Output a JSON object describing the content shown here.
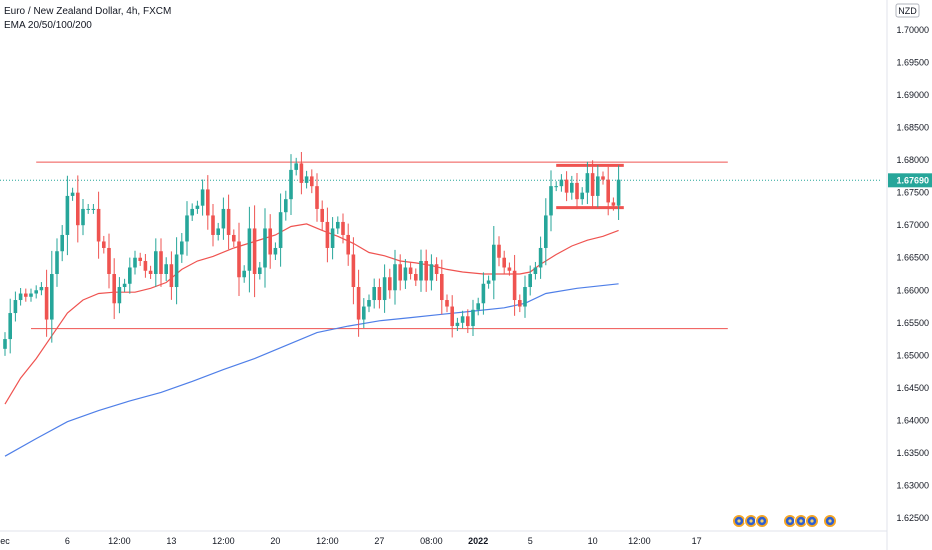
{
  "legend": {
    "title": "Euro / New Zealand Dollar, 4h, FXCM",
    "indicator": "EMA 20/50/100/200"
  },
  "currency_badge": "NZD",
  "last_price_label": "1.67690",
  "colors": {
    "up": "#26a69a",
    "down": "#ef5350",
    "ema50": "#ef5350",
    "ema200": "#4f7fe8",
    "level_line": "#ef5350",
    "last_price": "#26a69a"
  },
  "chart_data": {
    "type": "candlestick",
    "title": "Euro / New Zealand Dollar, 4h, FXCM",
    "ylim": [
      1.6225,
      1.7075
    ],
    "y_ticks": [
      "1.70000",
      "1.69500",
      "1.69000",
      "1.68500",
      "1.68000",
      "1.67500",
      "1.67000",
      "1.66500",
      "1.66000",
      "1.65500",
      "1.65000",
      "1.64500",
      "1.64000",
      "1.63500",
      "1.63000",
      "1.62500"
    ],
    "x_ticks": [
      {
        "i": 0,
        "label": "ec",
        "bold": false
      },
      {
        "i": 12,
        "label": "6",
        "bold": false
      },
      {
        "i": 22,
        "label": "12:00",
        "bold": false
      },
      {
        "i": 32,
        "label": "13",
        "bold": false
      },
      {
        "i": 42,
        "label": "12:00",
        "bold": false
      },
      {
        "i": 52,
        "label": "20",
        "bold": false
      },
      {
        "i": 62,
        "label": "12:00",
        "bold": false
      },
      {
        "i": 72,
        "label": "27",
        "bold": false
      },
      {
        "i": 82,
        "label": "08:00",
        "bold": false
      },
      {
        "i": 91,
        "label": "2022",
        "bold": true
      },
      {
        "i": 101,
        "label": "5",
        "bold": false
      },
      {
        "i": 113,
        "label": "10",
        "bold": false
      },
      {
        "i": 122,
        "label": "12:00",
        "bold": false
      },
      {
        "i": 133,
        "label": "17",
        "bold": false
      }
    ],
    "n_bars": 140,
    "closes": [
      1.6525,
      1.6565,
      1.6585,
      1.6595,
      1.659,
      1.6595,
      1.66,
      1.6605,
      1.6555,
      1.6625,
      1.666,
      1.6685,
      1.6745,
      1.675,
      1.67,
      1.6725,
      1.6725,
      1.6725,
      1.6675,
      1.6665,
      1.6625,
      1.658,
      1.6605,
      1.661,
      1.6635,
      1.665,
      1.6645,
      1.663,
      1.6625,
      1.666,
      1.6625,
      1.664,
      1.6605,
      1.6655,
      1.6675,
      1.6715,
      1.6725,
      1.673,
      1.6755,
      1.6715,
      1.6685,
      1.6695,
      1.6725,
      1.6685,
      1.6675,
      1.662,
      1.663,
      1.6695,
      1.6625,
      1.6635,
      1.6695,
      1.6655,
      1.6665,
      1.672,
      1.674,
      1.6785,
      1.6795,
      1.6765,
      1.6775,
      1.676,
      1.6725,
      1.6705,
      1.6665,
      1.6695,
      1.6705,
      1.6685,
      1.6655,
      1.6605,
      1.6555,
      1.6575,
      1.6585,
      1.6605,
      1.6585,
      1.662,
      1.66,
      1.664,
      1.6615,
      1.6635,
      1.6625,
      1.6615,
      1.6645,
      1.6615,
      1.664,
      1.6625,
      1.6585,
      1.6575,
      1.6545,
      1.655,
      1.656,
      1.6545,
      1.657,
      1.658,
      1.661,
      1.6615,
      1.667,
      1.665,
      1.6635,
      1.663,
      1.6585,
      1.6575,
      1.6605,
      1.6625,
      1.6635,
      1.6665,
      1.6715,
      1.676,
      1.676,
      1.677,
      1.675,
      1.6765,
      1.674,
      1.675,
      1.678,
      1.6745,
      1.6775,
      1.677,
      1.6735,
      1.673,
      1.677
    ],
    "emas": [
      {
        "name": "EMA 50",
        "color": "#ef5350",
        "points": [
          [
            0,
            1.6425
          ],
          [
            3,
            1.6465
          ],
          [
            6,
            1.6495
          ],
          [
            9,
            1.653
          ],
          [
            12,
            1.6565
          ],
          [
            15,
            1.6585
          ],
          [
            18,
            1.6595
          ],
          [
            21,
            1.6597
          ],
          [
            25,
            1.6597
          ],
          [
            28,
            1.6603
          ],
          [
            31,
            1.6612
          ],
          [
            34,
            1.6632
          ],
          [
            37,
            1.6645
          ],
          [
            40,
            1.6652
          ],
          [
            44,
            1.6665
          ],
          [
            48,
            1.6675
          ],
          [
            52,
            1.6685
          ],
          [
            55,
            1.6698
          ],
          [
            58,
            1.6702
          ],
          [
            61,
            1.6692
          ],
          [
            64,
            1.6683
          ],
          [
            67,
            1.6672
          ],
          [
            70,
            1.6658
          ],
          [
            73,
            1.6653
          ],
          [
            76,
            1.6645
          ],
          [
            79,
            1.6642
          ],
          [
            82,
            1.6638
          ],
          [
            85,
            1.6632
          ],
          [
            88,
            1.6628
          ],
          [
            92,
            1.6625
          ],
          [
            96,
            1.6625
          ],
          [
            99,
            1.6625
          ],
          [
            101,
            1.6628
          ],
          [
            103,
            1.664
          ],
          [
            106,
            1.6655
          ],
          [
            109,
            1.6668
          ],
          [
            112,
            1.6677
          ],
          [
            115,
            1.6683
          ],
          [
            118,
            1.6692
          ]
        ]
      },
      {
        "name": "EMA 200",
        "color": "#4f7fe8",
        "points": [
          [
            0,
            1.6345
          ],
          [
            6,
            1.6372
          ],
          [
            12,
            1.6398
          ],
          [
            18,
            1.6415
          ],
          [
            24,
            1.643
          ],
          [
            30,
            1.6443
          ],
          [
            36,
            1.646
          ],
          [
            42,
            1.6478
          ],
          [
            48,
            1.6495
          ],
          [
            54,
            1.6515
          ],
          [
            60,
            1.6535
          ],
          [
            66,
            1.6545
          ],
          [
            72,
            1.6553
          ],
          [
            78,
            1.6558
          ],
          [
            84,
            1.6563
          ],
          [
            90,
            1.6568
          ],
          [
            96,
            1.6573
          ],
          [
            100,
            1.658
          ],
          [
            104,
            1.6595
          ],
          [
            110,
            1.6603
          ],
          [
            118,
            1.661
          ]
        ]
      }
    ],
    "levels": [
      {
        "name": "upper-level-line",
        "y": 1.6797,
        "x_start": 6,
        "x_end": 139,
        "width": 1
      },
      {
        "name": "lower-level-line",
        "y": 1.6541,
        "x_start": 5,
        "x_end": 139,
        "width": 1
      },
      {
        "name": "range-top-line",
        "y": 1.6792,
        "x_start": 106,
        "x_end": 119,
        "width": 3
      },
      {
        "name": "range-bottom-line",
        "y": 1.6727,
        "x_start": 106,
        "x_end": 119,
        "width": 3
      }
    ],
    "last_price": 1.6769
  }
}
